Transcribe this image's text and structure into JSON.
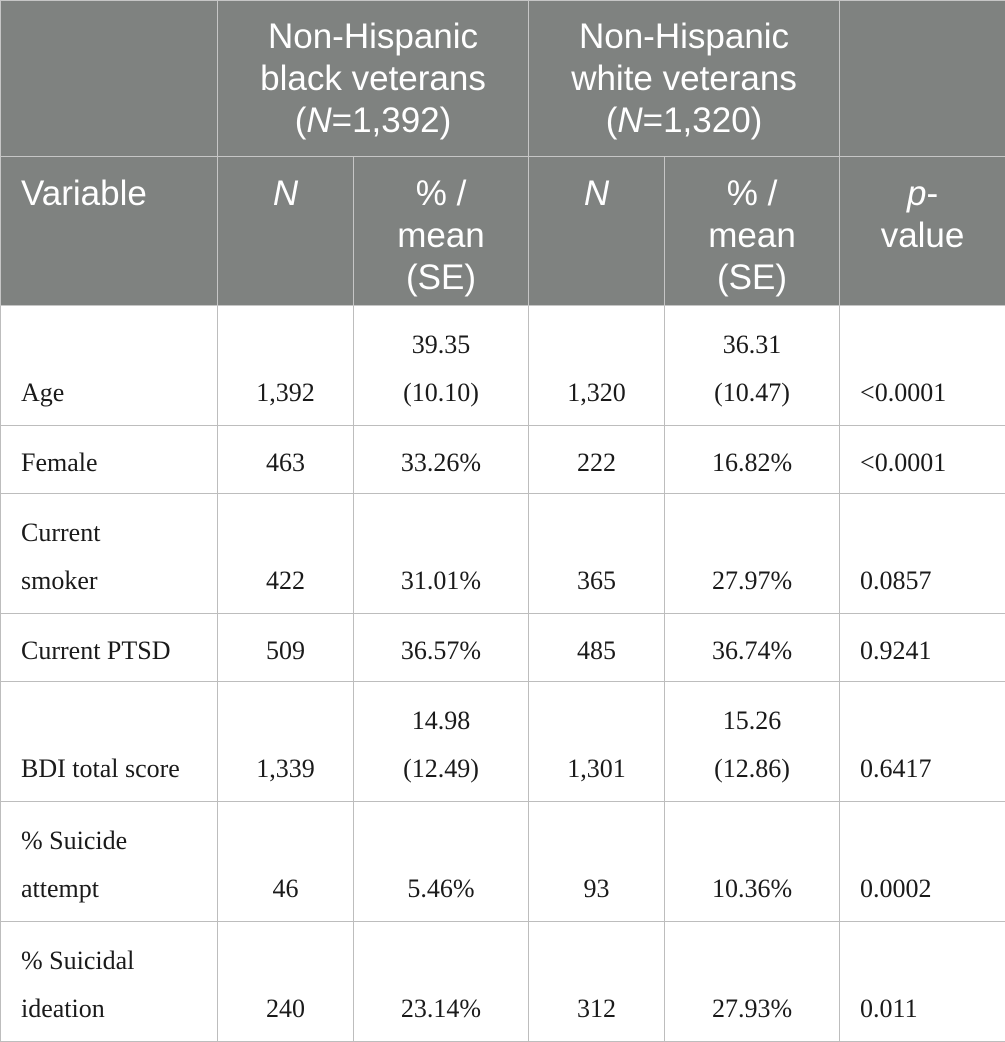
{
  "header": {
    "group1_line1": "Non-Hispanic",
    "group1_line2": "black veterans",
    "group1_n_label": "N",
    "group1_n_value": "=1,392)",
    "group2_line1": "Non-Hispanic",
    "group2_line2": "white veterans",
    "group2_n_label": "N",
    "group2_n_value": "=1,320)",
    "paren_open": "(",
    "variable": "Variable",
    "n": "N",
    "pct_line1": "% /",
    "pct_line2": "mean",
    "pct_line3": "(SE)",
    "p_line1": "p",
    "p_dash": "-",
    "p_line2": "value"
  },
  "rows": [
    {
      "label_1": "Age",
      "label_2": "",
      "n1": "1,392",
      "v1a": "39.35",
      "v1b": "(10.10)",
      "n2": "1,320",
      "v2a": "36.31",
      "v2b": "(10.47)",
      "p": "<0.0001"
    },
    {
      "label_1": "Female",
      "label_2": "",
      "n1": "463",
      "v1a": "33.26%",
      "v1b": "",
      "n2": "222",
      "v2a": "16.82%",
      "v2b": "",
      "p": "<0.0001"
    },
    {
      "label_1": "Current",
      "label_2": "smoker",
      "n1": "422",
      "v1a": "31.01%",
      "v1b": "",
      "n2": "365",
      "v2a": "27.97%",
      "v2b": "",
      "p": "0.0857"
    },
    {
      "label_1": "Current PTSD",
      "label_2": "",
      "n1": "509",
      "v1a": "36.57%",
      "v1b": "",
      "n2": "485",
      "v2a": "36.74%",
      "v2b": "",
      "p": "0.9241"
    },
    {
      "label_1": "BDI total score",
      "label_2": "",
      "n1": "1,339",
      "v1a": "14.98",
      "v1b": "(12.49)",
      "n2": "1,301",
      "v2a": "15.26",
      "v2b": "(12.86)",
      "p": "0.6417"
    },
    {
      "label_1": "% Suicide",
      "label_2": "attempt",
      "n1": "46",
      "v1a": "5.46%",
      "v1b": "",
      "n2": "93",
      "v2a": "10.36%",
      "v2b": "",
      "p": "0.0002"
    },
    {
      "label_1": "% Suicidal",
      "label_2": "ideation",
      "n1": "240",
      "v1a": "23.14%",
      "v1b": "",
      "n2": "312",
      "v2a": "27.93%",
      "v2b": "",
      "p": "0.011"
    }
  ]
}
